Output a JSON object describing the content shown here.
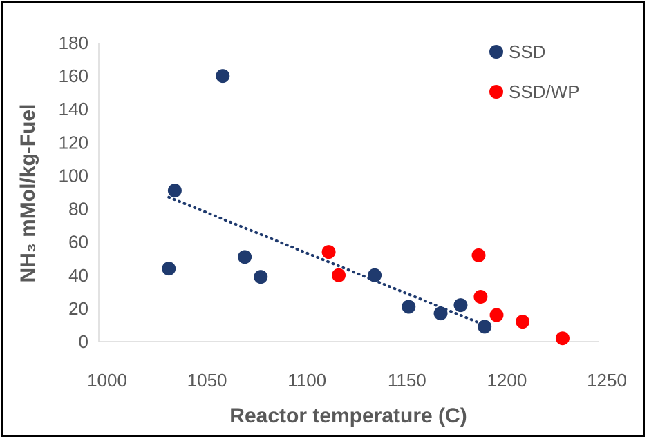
{
  "chart_data": {
    "type": "scatter",
    "xlabel": "Reactor temperature (C)",
    "ylabel": "NH₃ mMol/kg-Fuel",
    "xlim": [
      1000,
      1250
    ],
    "ylim": [
      0,
      180
    ],
    "xticks": [
      1000,
      1050,
      1100,
      1150,
      1200,
      1250
    ],
    "yticks": [
      0,
      20,
      40,
      60,
      80,
      100,
      120,
      140,
      160,
      180
    ],
    "grid": false,
    "legend_position": "top-right",
    "series": [
      {
        "name": "SSD",
        "color": "#1F3A6E",
        "x": [
          1035,
          1038,
          1062,
          1073,
          1081,
          1138,
          1155,
          1171,
          1181,
          1193
        ],
        "y": [
          44,
          91,
          160,
          51,
          39,
          40,
          21,
          17,
          22,
          9
        ]
      },
      {
        "name": "SSD/WP",
        "color": "#FF0000",
        "x": [
          1115,
          1120,
          1190,
          1191,
          1199,
          1212,
          1232
        ],
        "y": [
          54,
          40,
          52,
          27,
          16,
          12,
          2
        ]
      }
    ],
    "trendline": {
      "series": "SSD",
      "style": "dotted",
      "color": "#1F3A6E",
      "x": [
        1035,
        1193
      ],
      "y": [
        87,
        10
      ]
    }
  }
}
